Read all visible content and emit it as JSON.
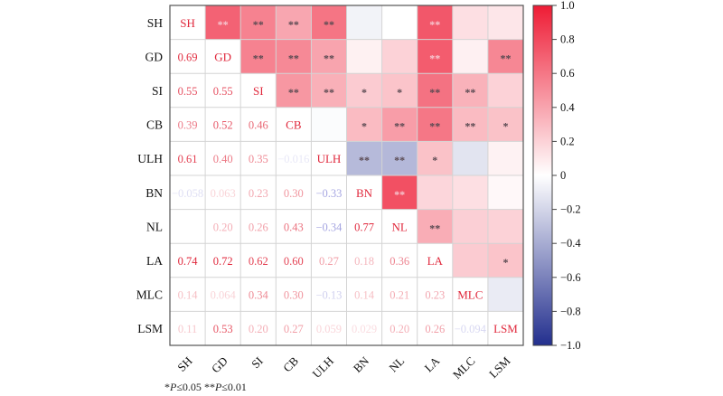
{
  "chart_data": {
    "type": "heatmap",
    "title": "",
    "variables": [
      "SH",
      "GD",
      "SI",
      "CB",
      "ULH",
      "BN",
      "NL",
      "LA",
      "MLC",
      "LSM"
    ],
    "lower_triangle_shows": "correlation coefficient",
    "upper_triangle_shows": "color-coded correlation with significance stars",
    "diagonal_shows": "variable name",
    "correlations": [
      [
        "SH",
        "GD",
        0.69,
        "**"
      ],
      [
        "SH",
        "SI",
        0.55,
        "**"
      ],
      [
        "SH",
        "CB",
        0.39,
        "**"
      ],
      [
        "SH",
        "ULH",
        0.61,
        "**"
      ],
      [
        "SH",
        "BN",
        -0.058,
        ""
      ],
      [
        "SH",
        "NL",
        0.0,
        ""
      ],
      [
        "SH",
        "LA",
        0.74,
        "**"
      ],
      [
        "SH",
        "MLC",
        0.14,
        ""
      ],
      [
        "SH",
        "LSM",
        0.11,
        ""
      ],
      [
        "GD",
        "SI",
        0.55,
        "**"
      ],
      [
        "GD",
        "CB",
        0.52,
        "**"
      ],
      [
        "GD",
        "ULH",
        0.4,
        "**"
      ],
      [
        "GD",
        "BN",
        0.063,
        ""
      ],
      [
        "GD",
        "NL",
        0.2,
        ""
      ],
      [
        "GD",
        "LA",
        0.72,
        "**"
      ],
      [
        "GD",
        "MLC",
        0.064,
        ""
      ],
      [
        "GD",
        "LSM",
        0.53,
        "**"
      ],
      [
        "SI",
        "CB",
        0.46,
        "**"
      ],
      [
        "SI",
        "ULH",
        0.35,
        "**"
      ],
      [
        "SI",
        "BN",
        0.23,
        "*"
      ],
      [
        "SI",
        "NL",
        0.26,
        "*"
      ],
      [
        "SI",
        "LA",
        0.62,
        "**"
      ],
      [
        "SI",
        "MLC",
        0.34,
        "**"
      ],
      [
        "SI",
        "LSM",
        0.2,
        ""
      ],
      [
        "CB",
        "ULH",
        -0.016,
        ""
      ],
      [
        "CB",
        "BN",
        0.3,
        "*"
      ],
      [
        "CB",
        "NL",
        0.43,
        "**"
      ],
      [
        "CB",
        "LA",
        0.6,
        "**"
      ],
      [
        "CB",
        "MLC",
        0.3,
        "**"
      ],
      [
        "CB",
        "LSM",
        0.27,
        "*"
      ],
      [
        "ULH",
        "BN",
        -0.33,
        "**"
      ],
      [
        "ULH",
        "NL",
        -0.34,
        "**"
      ],
      [
        "ULH",
        "LA",
        0.27,
        "*"
      ],
      [
        "ULH",
        "MLC",
        -0.13,
        ""
      ],
      [
        "ULH",
        "LSM",
        0.059,
        ""
      ],
      [
        "BN",
        "NL",
        0.77,
        "**"
      ],
      [
        "BN",
        "LA",
        0.18,
        ""
      ],
      [
        "BN",
        "MLC",
        0.14,
        ""
      ],
      [
        "BN",
        "LSM",
        0.029,
        ""
      ],
      [
        "NL",
        "LA",
        0.36,
        "**"
      ],
      [
        "NL",
        "MLC",
        0.21,
        ""
      ],
      [
        "NL",
        "LSM",
        0.2,
        ""
      ],
      [
        "LA",
        "MLC",
        0.23,
        ""
      ],
      [
        "LA",
        "LSM",
        0.26,
        "*"
      ],
      [
        "MLC",
        "LSM",
        -0.094,
        ""
      ]
    ],
    "hidden_labels": [
      [
        "SH",
        "NL"
      ]
    ],
    "colorbar": {
      "range": [
        -1.0,
        1.0
      ],
      "ticks": [
        "1.0",
        "0.8",
        "0.6",
        "0.4",
        "0.2",
        "0",
        "−0.2",
        "−0.4",
        "−0.6",
        "−0.8",
        "−1.0"
      ],
      "tick_values": [
        1.0,
        0.8,
        0.6,
        0.4,
        0.2,
        0,
        -0.2,
        -0.4,
        -0.6,
        -0.8,
        -1.0
      ],
      "colors": {
        "positive": "#ee1c35",
        "zero": "#ffffff",
        "negative": "#232f8e"
      },
      "placement": "right"
    },
    "grid": true,
    "legend": "none"
  },
  "footnote": {
    "star1": "*",
    "p1": "P",
    "cond1": "≤0.05 ",
    "star2": "**",
    "p2": "P",
    "cond2": "≤0.01"
  },
  "colors": {
    "diag_text": "#e0283c",
    "dark_star": "#5a4a52",
    "light_star": "#f6c6cf",
    "gridline": "#d4d4d4",
    "frame": "#555555"
  }
}
